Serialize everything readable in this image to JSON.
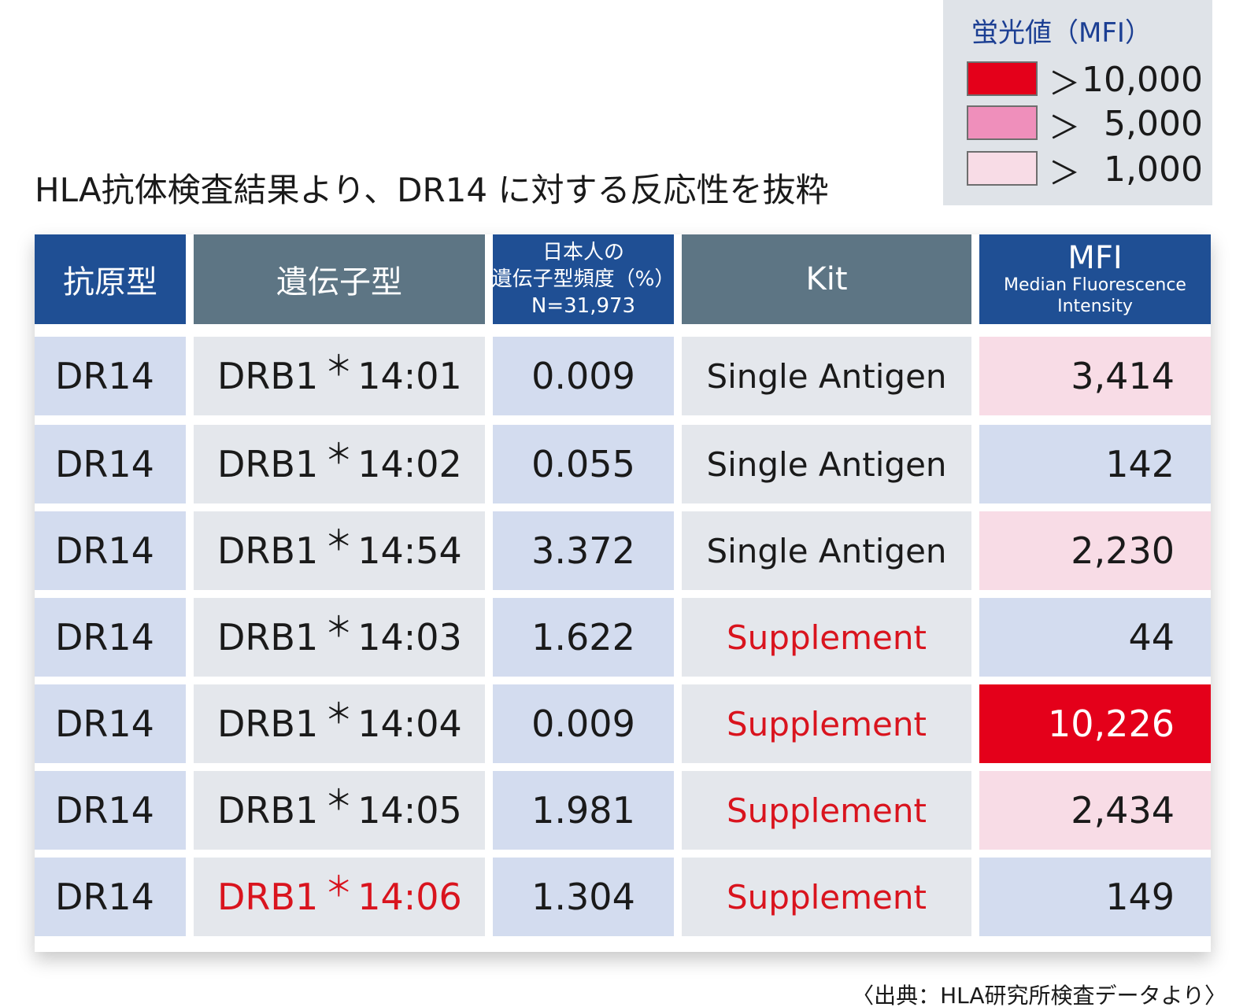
{
  "title": "HLA抗体検査結果より、DR14 に対する反応性を抜粋",
  "legend": {
    "title": "蛍光値（MFI）",
    "items": [
      {
        "arrow": "＞",
        "value": "10,000",
        "color": "#e4001a"
      },
      {
        "arrow": "＞",
        "value": "5,000",
        "color": "#ef8fbb"
      },
      {
        "arrow": "＞",
        "value": "1,000",
        "color": "#f8dce6"
      }
    ]
  },
  "table": {
    "headers": {
      "antigen": "抗原型",
      "gene": "遺伝子型",
      "freq_line1": "日本人の",
      "freq_line2": "遺伝子型頻度（%）",
      "freq_line3": "N=31,973",
      "kit": "Kit",
      "mfi": "MFI",
      "mfi_sub1": "Median Fluorescence",
      "mfi_sub2": "Intensity"
    },
    "rows": [
      {
        "antigen": "DR14",
        "gene_prefix": "DRB1",
        "asterisk": "＊",
        "gene_suffix": "14:01",
        "freq": "0.009",
        "kit": "Single Antigen",
        "mfi": "3,414"
      },
      {
        "antigen": "DR14",
        "gene_prefix": "DRB1",
        "asterisk": "＊",
        "gene_suffix": "14:02",
        "freq": "0.055",
        "kit": "Single Antigen",
        "mfi": "142"
      },
      {
        "antigen": "DR14",
        "gene_prefix": "DRB1",
        "asterisk": "＊",
        "gene_suffix": "14:54",
        "freq": "3.372",
        "kit": "Single Antigen",
        "mfi": "2,230"
      },
      {
        "antigen": "DR14",
        "gene_prefix": "DRB1",
        "asterisk": "＊",
        "gene_suffix": "14:03",
        "freq": "1.622",
        "kit": "Supplement",
        "mfi": "44"
      },
      {
        "antigen": "DR14",
        "gene_prefix": "DRB1",
        "asterisk": "＊",
        "gene_suffix": "14:04",
        "freq": "0.009",
        "kit": "Supplement",
        "mfi": "10,226"
      },
      {
        "antigen": "DR14",
        "gene_prefix": "DRB1",
        "asterisk": "＊",
        "gene_suffix": "14:05",
        "freq": "1.981",
        "kit": "Supplement",
        "mfi": "2,434"
      },
      {
        "antigen": "DR14",
        "gene_prefix": "DRB1",
        "asterisk": "＊",
        "gene_suffix": "14:06",
        "freq": "1.304",
        "kit": "Supplement",
        "mfi": "149"
      }
    ]
  },
  "source": "〈出典：HLA研究所検査データより〉",
  "colors": {
    "header_navy": "#1f4f94",
    "header_slate": "#5d7584",
    "highlight_red": "#d9141e"
  }
}
